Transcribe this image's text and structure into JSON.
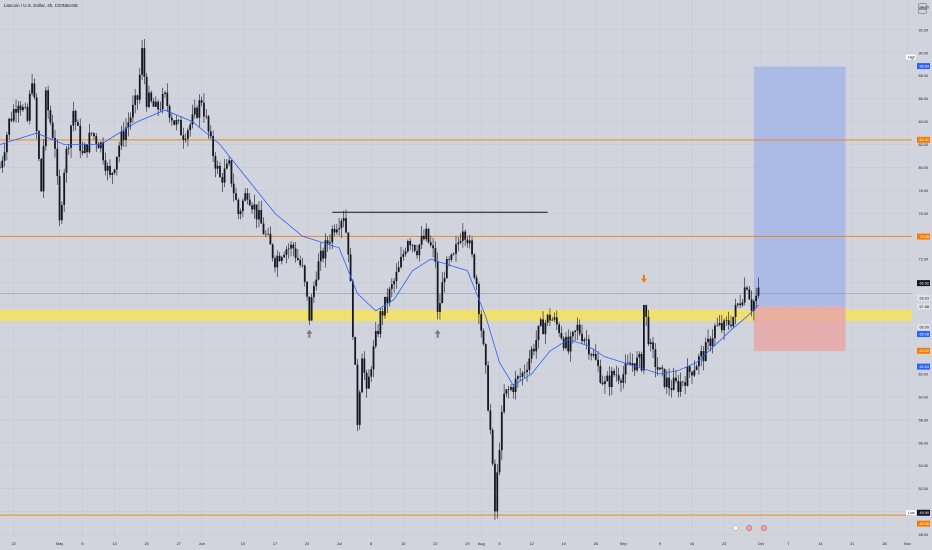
{
  "header": {
    "title": "Litecoin / U.S. Dollar, 4h, COINBASE"
  },
  "currency_label": "USD",
  "colors": {
    "background": "#d1d4dc",
    "candle": "#131722",
    "ma": "#2962ff",
    "level": "#f57c00",
    "zone": "#f6e25c",
    "target": "#9fb3ea",
    "stop": "#e8a7a7",
    "label_blue": "#2962ff",
    "label_orange": "#f57c00",
    "label_dark": "#131722",
    "arrow_gray": "#787b86"
  },
  "chart_data": {
    "type": "candlestick",
    "title": "Litecoin / U.S. Dollar, 4h, COINBASE",
    "xlabel": "",
    "ylabel": "",
    "ylim": [
      47.7,
      94.6
    ],
    "grid": true,
    "y_ticks": [
      "92.00",
      "90.00",
      "88.00",
      "86.00",
      "84.00",
      "82.00",
      "80.00",
      "78.00",
      "76.00",
      "74.00",
      "72.00",
      "70.00",
      "68.00",
      "66.00",
      "64.00",
      "62.00",
      "60.00",
      "58.00",
      "56.00",
      "54.00",
      "52.00",
      "50.00",
      "48.00"
    ],
    "x_ticks": [
      "22",
      "May",
      "6",
      "13",
      "20",
      "27",
      "Jun",
      "10",
      "17",
      "24",
      "Jul",
      "8",
      "15",
      "22",
      "29",
      "Aug",
      "5",
      "12",
      "19",
      "26",
      "Sep",
      "9",
      "16",
      "23",
      "Oct",
      "7",
      "14",
      "21",
      "28",
      "Nov"
    ],
    "x_tick_days": [
      -9,
      1,
      6,
      13,
      20,
      27,
      32,
      41,
      48,
      55,
      62,
      69,
      76,
      83,
      90,
      93,
      97,
      104,
      111,
      118,
      124,
      132,
      139,
      146,
      154,
      160,
      167,
      174,
      181,
      186
    ],
    "horizontal_levels": [
      82.4,
      74.0,
      49.7,
      46.9
    ],
    "support_zone": [
      66.6,
      67.6
    ],
    "resistance_line": {
      "value": 76.1,
      "day_start": 60.5,
      "day_end": 107.5
    },
    "current_price_line": 69.0,
    "price_labels": [
      {
        "text": "94.00",
        "value": 94.0,
        "style": "plain"
      },
      {
        "text": "88.84",
        "value": 88.84,
        "style": "blue"
      },
      {
        "text": "82.41",
        "value": 82.41,
        "style": "orange"
      },
      {
        "text": "73.98",
        "value": 73.98,
        "style": "orange"
      },
      {
        "text": "69.92",
        "value": 69.92,
        "style": "dark"
      },
      {
        "text": "68.63",
        "value": 68.63,
        "style": "gray"
      },
      {
        "text": "67.88",
        "value": 67.88,
        "style": "gray"
      },
      {
        "text": "66.09",
        "value": 66.09,
        "style": "gray"
      },
      {
        "text": "65.48",
        "value": 65.48,
        "style": "blue"
      },
      {
        "text": "64.02",
        "value": 64.02,
        "style": "orange"
      },
      {
        "text": "62.64",
        "value": 62.64,
        "style": "blue"
      },
      {
        "text": "49.90",
        "value": 49.9,
        "style": "dark"
      },
      {
        "text": "48.95",
        "value": 48.95,
        "style": "orange"
      },
      {
        "text": "46.92",
        "value": 46.92,
        "style": "orange"
      }
    ],
    "side_labels": [
      {
        "text": "High",
        "value": 89.62
      },
      {
        "text": "Low",
        "value": 49.9
      }
    ],
    "long_position": {
      "entry": 67.9,
      "target": 88.8,
      "stop": 64.0,
      "day_start": 152.5,
      "day_end": 172.5
    },
    "arrows": [
      {
        "day": 55.5,
        "value": 65.5,
        "direction": "up",
        "color": "gray"
      },
      {
        "day": 83.5,
        "value": 65.5,
        "direction": "up",
        "color": "gray"
      },
      {
        "day": 128.5,
        "value": 70.3,
        "direction": "down",
        "color": "orange"
      }
    ],
    "price_path": [
      [
        -12,
        80
      ],
      [
        -10,
        84
      ],
      [
        -8,
        86
      ],
      [
        -6,
        84
      ],
      [
        -5,
        88
      ],
      [
        -4,
        83
      ],
      [
        -3,
        78
      ],
      [
        -2,
        86
      ],
      [
        0,
        82
      ],
      [
        1,
        75
      ],
      [
        2,
        80
      ],
      [
        4,
        85
      ],
      [
        6,
        81
      ],
      [
        8,
        83
      ],
      [
        10,
        82
      ],
      [
        12,
        79
      ],
      [
        14,
        82
      ],
      [
        16,
        84
      ],
      [
        18,
        86
      ],
      [
        19,
        90
      ],
      [
        20,
        86
      ],
      [
        22,
        85
      ],
      [
        24,
        86
      ],
      [
        26,
        84
      ],
      [
        28,
        83
      ],
      [
        30,
        84
      ],
      [
        32,
        86
      ],
      [
        34,
        82
      ],
      [
        36,
        79
      ],
      [
        38,
        80
      ],
      [
        40,
        76
      ],
      [
        42,
        78
      ],
      [
        44,
        76
      ],
      [
        46,
        74
      ],
      [
        48,
        72
      ],
      [
        50,
        73
      ],
      [
        52,
        73
      ],
      [
        54,
        71
      ],
      [
        55.5,
        67
      ],
      [
        57,
        71
      ],
      [
        59,
        73
      ],
      [
        61,
        75
      ],
      [
        63,
        76
      ],
      [
        64,
        73
      ],
      [
        65,
        66
      ],
      [
        66,
        58
      ],
      [
        67,
        64
      ],
      [
        68,
        60
      ],
      [
        69,
        63
      ],
      [
        71,
        67
      ],
      [
        73,
        69
      ],
      [
        75,
        71
      ],
      [
        77,
        74
      ],
      [
        79,
        73
      ],
      [
        81,
        74
      ],
      [
        83,
        72
      ],
      [
        83.5,
        67
      ],
      [
        85,
        71
      ],
      [
        87,
        72
      ],
      [
        89,
        75
      ],
      [
        90,
        74
      ],
      [
        91,
        72
      ],
      [
        92,
        70
      ],
      [
        93,
        66
      ],
      [
        94,
        62
      ],
      [
        95,
        57
      ],
      [
        96,
        50
      ],
      [
        97,
        56
      ],
      [
        98,
        60
      ],
      [
        100,
        61
      ],
      [
        102,
        62
      ],
      [
        104,
        64
      ],
      [
        106,
        66
      ],
      [
        108,
        67
      ],
      [
        110,
        66
      ],
      [
        112,
        64
      ],
      [
        114,
        66
      ],
      [
        116,
        65
      ],
      [
        118,
        63
      ],
      [
        120,
        61
      ],
      [
        122,
        62
      ],
      [
        124,
        62
      ],
      [
        126,
        63
      ],
      [
        128,
        63
      ],
      [
        128.5,
        68
      ],
      [
        130,
        64
      ],
      [
        132,
        62
      ],
      [
        134,
        61
      ],
      [
        136,
        61
      ],
      [
        138,
        62
      ],
      [
        140,
        63
      ],
      [
        142,
        64
      ],
      [
        144,
        66
      ],
      [
        146,
        66
      ],
      [
        148,
        67
      ],
      [
        150,
        69
      ],
      [
        151,
        70
      ],
      [
        152,
        68
      ],
      [
        153.5,
        69
      ]
    ],
    "ma_path": [
      [
        -12,
        82
      ],
      [
        -4,
        83
      ],
      [
        2,
        82
      ],
      [
        10,
        82
      ],
      [
        18,
        84
      ],
      [
        24,
        85
      ],
      [
        30,
        84
      ],
      [
        36,
        82
      ],
      [
        42,
        79
      ],
      [
        48,
        76
      ],
      [
        54,
        74
      ],
      [
        58,
        73.5
      ],
      [
        62,
        73
      ],
      [
        66,
        69
      ],
      [
        70,
        67.5
      ],
      [
        74,
        68.5
      ],
      [
        78,
        71
      ],
      [
        82,
        72
      ],
      [
        86,
        71.5
      ],
      [
        90,
        71
      ],
      [
        94,
        67
      ],
      [
        97,
        63
      ],
      [
        100,
        61
      ],
      [
        104,
        62
      ],
      [
        108,
        64
      ],
      [
        112,
        65
      ],
      [
        116,
        64.5
      ],
      [
        120,
        63.5
      ],
      [
        124,
        63
      ],
      [
        128,
        62.5
      ],
      [
        132,
        62
      ],
      [
        136,
        62.3
      ],
      [
        140,
        63
      ],
      [
        144,
        64.5
      ],
      [
        148,
        66
      ],
      [
        151,
        67
      ],
      [
        153.5,
        68
      ]
    ]
  }
}
